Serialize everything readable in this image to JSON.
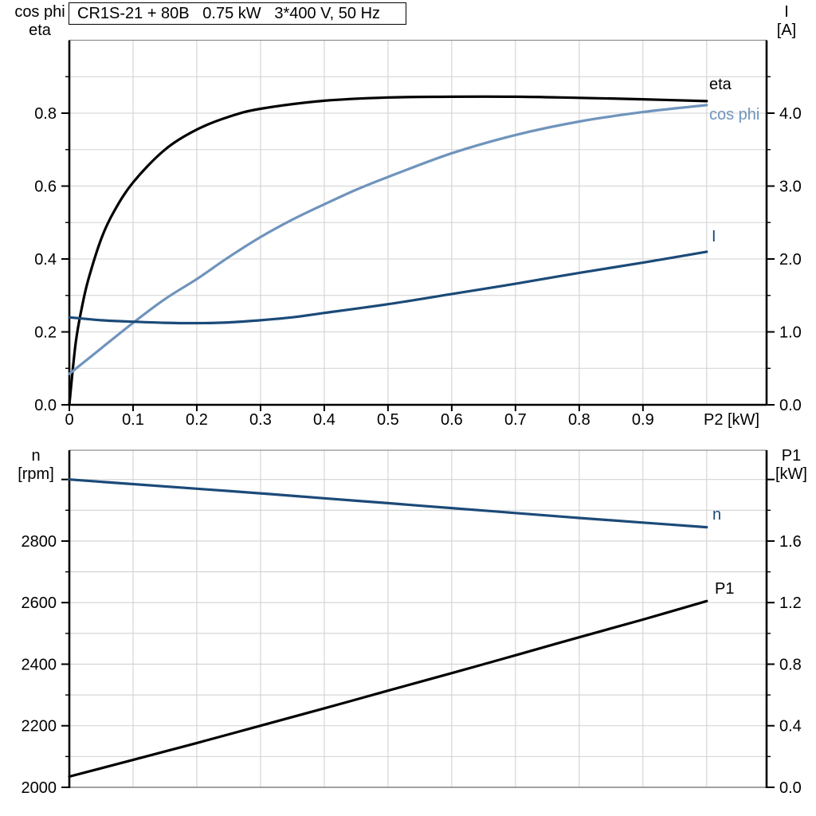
{
  "title_box": {
    "text": "CR1S-21 + 80B   0.75 kW   3*400 V, 50 Hz"
  },
  "colors": {
    "curve_black": "#000000",
    "curve_light_blue": "#6f94bc",
    "curve_dark_blue": "#1b4a78",
    "grid": "#d2d2d2",
    "frame_gray": "#8f8f8f",
    "bottom_line_gray": "#6b6b6b",
    "axis_black": "#000000"
  },
  "top_chart": {
    "left_axis_title": {
      "line1": "cos phi",
      "line2": "eta"
    },
    "right_axis_title": {
      "line1": "I",
      "line2": "[A]"
    },
    "x_unit_label": "P2 [kW]"
  },
  "bottom_chart": {
    "left_axis_title": {
      "line1": "n",
      "line2": "[rpm]"
    },
    "right_axis_title": {
      "line1": "P1",
      "line2": "[kW]"
    }
  },
  "chart_data": [
    {
      "type": "line",
      "title": "CR1S-21 + 80B   0.75 kW   3*400 V, 50 Hz",
      "xlabel": "P2 [kW]",
      "xlim": [
        0,
        1.094
      ],
      "grid": true,
      "grid_step_x": 0.1,
      "grid_x_max": 1.0,
      "x_ticks": [
        "0",
        "0.1",
        "0.2",
        "0.3",
        "0.4",
        "0.5",
        "0.6",
        "0.7",
        "0.8",
        "0.9"
      ],
      "x_tick_values": [
        0,
        0.1,
        0.2,
        0.3,
        0.4,
        0.5,
        0.6,
        0.7,
        0.8,
        0.9
      ],
      "left_axis": {
        "label": "cos phi / eta",
        "lim": [
          0,
          1.0
        ],
        "ticks": [
          "0.0",
          "0.2",
          "0.4",
          "0.6",
          "0.8"
        ],
        "tick_values": [
          0,
          0.2,
          0.4,
          0.6,
          0.8
        ],
        "minor_step": 0.1,
        "extra_tick_values": []
      },
      "right_axis": {
        "label": "I [A]",
        "lim": [
          0,
          5.0
        ],
        "ticks": [
          "0.0",
          "1.0",
          "2.0",
          "3.0",
          "4.0"
        ],
        "tick_values": [
          0,
          1,
          2,
          3,
          4
        ],
        "minor_step": 0.5,
        "extra_tick_values": []
      },
      "series": [
        {
          "name": "eta",
          "axis": "left",
          "color_key": "curve_black",
          "x": [
            0,
            0.01,
            0.02,
            0.03,
            0.05,
            0.07,
            0.1,
            0.15,
            0.2,
            0.25,
            0.3,
            0.4,
            0.5,
            0.6,
            0.7,
            0.8,
            0.9,
            1.0
          ],
          "y": [
            0,
            0.17,
            0.27,
            0.345,
            0.455,
            0.53,
            0.61,
            0.7,
            0.755,
            0.79,
            0.812,
            0.834,
            0.843,
            0.845,
            0.845,
            0.842,
            0.838,
            0.833
          ]
        },
        {
          "name": "cos phi",
          "axis": "left",
          "color_key": "curve_light_blue",
          "x": [
            0,
            0.05,
            0.1,
            0.15,
            0.2,
            0.25,
            0.3,
            0.35,
            0.4,
            0.45,
            0.5,
            0.6,
            0.7,
            0.8,
            0.9,
            1.0
          ],
          "y": [
            0.085,
            0.155,
            0.225,
            0.29,
            0.345,
            0.405,
            0.46,
            0.508,
            0.55,
            0.59,
            0.625,
            0.69,
            0.74,
            0.777,
            0.803,
            0.822
          ]
        },
        {
          "name": "I",
          "axis": "right",
          "color_key": "curve_dark_blue",
          "x": [
            0,
            0.05,
            0.1,
            0.15,
            0.2,
            0.25,
            0.3,
            0.35,
            0.4,
            0.5,
            0.6,
            0.7,
            0.8,
            0.9,
            1.0
          ],
          "y": [
            1.2,
            1.16,
            1.14,
            1.125,
            1.12,
            1.13,
            1.16,
            1.2,
            1.26,
            1.38,
            1.52,
            1.66,
            1.81,
            1.95,
            2.1
          ]
        }
      ]
    },
    {
      "type": "line",
      "title": "",
      "xlabel": "",
      "xlim": [
        0,
        1.094
      ],
      "grid": true,
      "grid_step_x": 0.1,
      "grid_x_max": 1.0,
      "x_ticks": [],
      "x_tick_values": [],
      "left_axis": {
        "label": "n [rpm]",
        "lim": [
          2000,
          3095
        ],
        "ticks": [
          "2000",
          "2200",
          "2400",
          "2600",
          "2800"
        ],
        "tick_values": [
          2000,
          2200,
          2400,
          2600,
          2800
        ],
        "minor_step": 100,
        "extra_tick_values": [
          3000
        ]
      },
      "right_axis": {
        "label": "P1 [kW]",
        "lim": [
          0,
          2.19
        ],
        "ticks": [
          "0.0",
          "0.4",
          "0.8",
          "1.2",
          "1.6"
        ],
        "tick_values": [
          0,
          0.4,
          0.8,
          1.2,
          1.6
        ],
        "minor_step": 0.2,
        "extra_tick_values": [
          2.0
        ]
      },
      "series": [
        {
          "name": "n",
          "axis": "left",
          "color_key": "curve_dark_blue",
          "x": [
            0,
            0.1,
            0.2,
            0.3,
            0.4,
            0.5,
            0.6,
            0.7,
            0.8,
            0.9,
            1.0
          ],
          "y": [
            3000,
            2985,
            2970,
            2955,
            2939,
            2923,
            2907,
            2891,
            2875,
            2860,
            2845
          ]
        },
        {
          "name": "P1",
          "axis": "right",
          "color_key": "curve_black",
          "x": [
            0,
            0.1,
            0.2,
            0.3,
            0.4,
            0.5,
            0.6,
            0.7,
            0.8,
            0.9,
            1.0
          ],
          "y": [
            0.07,
            0.178,
            0.288,
            0.4,
            0.513,
            0.628,
            0.742,
            0.858,
            0.975,
            1.09,
            1.21
          ]
        }
      ]
    }
  ]
}
